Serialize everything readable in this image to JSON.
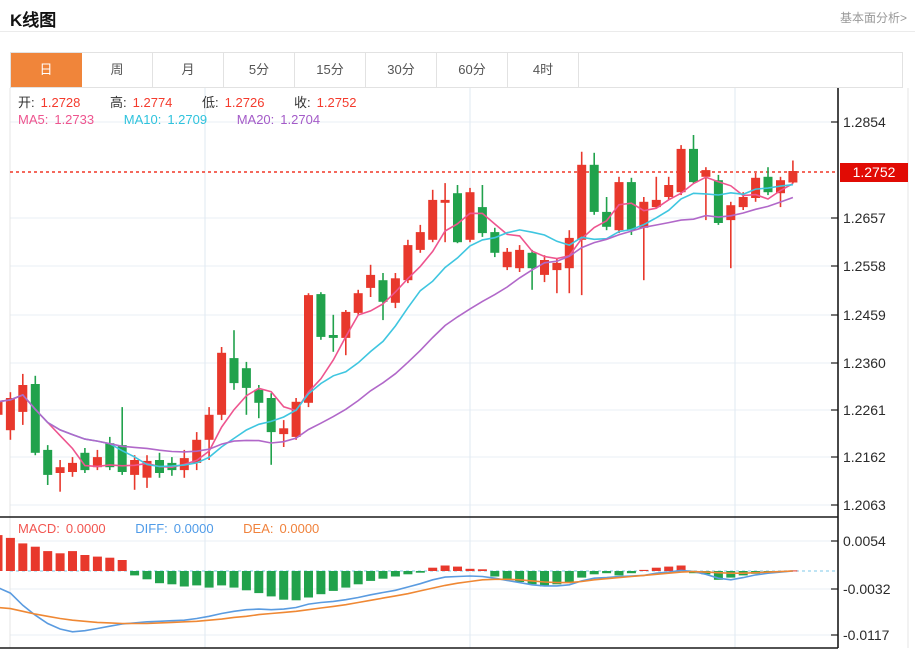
{
  "header": {
    "title": "K线图",
    "link": "基本面分析>"
  },
  "tabs": {
    "items": [
      "日",
      "周",
      "月",
      "5分",
      "15分",
      "30分",
      "60分",
      "4时"
    ],
    "active_index": 0
  },
  "ohlc": {
    "open_label": "开:",
    "open": "1.2728",
    "high_label": "高:",
    "high": "1.2774",
    "low_label": "低:",
    "low": "1.2726",
    "close_label": "收:",
    "close": "1.2752"
  },
  "ma": {
    "ma5_label": "MA5:",
    "ma5": "1.2733",
    "ma10_label": "MA10:",
    "ma10": "1.2709",
    "ma20_label": "MA20:",
    "ma20": "1.2704"
  },
  "macd_header": {
    "macd_label": "MACD:",
    "macd": "0.0000",
    "diff_label": "DIFF:",
    "diff": "0.0000",
    "dea_label": "DEA:",
    "dea": "0.0000"
  },
  "y_axis": {
    "main_ticks": [
      "1.2854",
      "1.2657",
      "1.2558",
      "1.2459",
      "1.2360",
      "1.2261",
      "1.2162",
      "1.2063"
    ],
    "current_price": "1.2752",
    "macd_ticks": [
      "0.0054",
      "-0.0032",
      "-0.0117"
    ]
  },
  "colors": {
    "up": "#e8382c",
    "down": "#21a24c",
    "accent_tab": "#f0853a",
    "price_line": "#f03626",
    "badge": "#e10b04",
    "ma5": "#ee558f",
    "ma10": "#3fc6e0",
    "ma20": "#b168c9",
    "diff": "#5a9be0",
    "dea": "#ef8834",
    "zero_dash": "#aadcf0",
    "grid": "#e9eff6",
    "vgrid": "#dfe9f2",
    "axis": "#1a1a1a"
  },
  "chart_data": {
    "type": "candlestick_with_macd",
    "title": "K线图 daily candles",
    "price_axis": {
      "ticks": [
        1.2854,
        1.2657,
        1.2558,
        1.2459,
        1.236,
        1.2261,
        1.2162,
        1.2063
      ],
      "current_price": 1.2752
    },
    "macd_axis": {
      "ticks": [
        0.0054,
        -0.0032,
        -0.0117
      ]
    },
    "legend": [
      "MA5",
      "MA10",
      "MA20",
      "MACD",
      "DIFF",
      "DEA"
    ],
    "candles_ohlc_format": [
      "open",
      "high",
      "low",
      "close"
    ],
    "candles": [
      [
        1.2245,
        1.2292,
        1.2203,
        1.2272
      ],
      [
        1.2213,
        1.2292,
        1.2193,
        1.228
      ],
      [
        1.2251,
        1.233,
        1.2224,
        1.2307
      ],
      [
        1.2309,
        1.2326,
        1.2161,
        1.2166
      ],
      [
        1.2172,
        1.2182,
        1.2099,
        1.212
      ],
      [
        1.2124,
        1.2151,
        1.2085,
        1.2136
      ],
      [
        1.2126,
        1.2157,
        1.2116,
        1.2145
      ],
      [
        1.2166,
        1.2176,
        1.2124,
        1.213
      ],
      [
        1.2136,
        1.2172,
        1.213,
        1.2157
      ],
      [
        1.2186,
        1.2199,
        1.213,
        1.2136
      ],
      [
        1.2182,
        1.2261,
        1.212,
        1.2126
      ],
      [
        1.212,
        1.2161,
        1.2089,
        1.2151
      ],
      [
        1.2114,
        1.2161,
        1.2093,
        1.2149
      ],
      [
        1.2151,
        1.2166,
        1.2114,
        1.2124
      ],
      [
        1.2145,
        1.2157,
        1.2118,
        1.213
      ],
      [
        1.213,
        1.2172,
        1.2114,
        1.2155
      ],
      [
        1.2145,
        1.2209,
        1.213,
        1.2193
      ],
      [
        1.2193,
        1.2261,
        1.2151,
        1.2245
      ],
      [
        1.2245,
        1.2386,
        1.2234,
        1.2374
      ],
      [
        1.2363,
        1.2421,
        1.2297,
        1.2311
      ],
      [
        1.2342,
        1.2355,
        1.2245,
        1.2301
      ],
      [
        1.2297,
        1.2307,
        1.2238,
        1.227
      ],
      [
        1.228,
        1.229,
        1.2141,
        1.2209
      ],
      [
        1.2205,
        1.2234,
        1.2178,
        1.2217
      ],
      [
        1.2199,
        1.228,
        1.2193,
        1.2272
      ],
      [
        1.227,
        1.2498,
        1.2261,
        1.2494
      ],
      [
        1.2496,
        1.25,
        1.2401,
        1.2407
      ],
      [
        1.2411,
        1.2453,
        1.2376,
        1.2405
      ],
      [
        1.2405,
        1.2463,
        1.2369,
        1.2459
      ],
      [
        1.2457,
        1.2505,
        1.2453,
        1.2498
      ],
      [
        1.2509,
        1.2557,
        1.249,
        1.2536
      ],
      [
        1.2525,
        1.254,
        1.2442,
        1.248
      ],
      [
        1.2478,
        1.254,
        1.2467,
        1.2529
      ],
      [
        1.2525,
        1.2609,
        1.2519,
        1.2598
      ],
      [
        1.2588,
        1.264,
        1.2582,
        1.2625
      ],
      [
        1.2609,
        1.2713,
        1.2604,
        1.2692
      ],
      [
        1.2686,
        1.2727,
        1.2604,
        1.2692
      ],
      [
        1.2706,
        1.2723,
        1.2602,
        1.2604
      ],
      [
        1.2609,
        1.2717,
        1.2604,
        1.2708
      ],
      [
        1.2677,
        1.2723,
        1.2615,
        1.2623
      ],
      [
        1.2625,
        1.2634,
        1.2573,
        1.2582
      ],
      [
        1.2552,
        1.2592,
        1.2546,
        1.2584
      ],
      [
        1.255,
        1.2598,
        1.2542,
        1.2588
      ],
      [
        1.2582,
        1.2588,
        1.2505,
        1.255
      ],
      [
        1.2536,
        1.2577,
        1.2521,
        1.2567
      ],
      [
        1.2546,
        1.2571,
        1.2498,
        1.2561
      ],
      [
        1.255,
        1.2629,
        1.2498,
        1.2613
      ],
      [
        1.2609,
        1.2792,
        1.2494,
        1.2765
      ],
      [
        1.2765,
        1.279,
        1.2661,
        1.2667
      ],
      [
        1.2667,
        1.2698,
        1.2629,
        1.2636
      ],
      [
        1.2629,
        1.274,
        1.2623,
        1.2729
      ],
      [
        1.2729,
        1.2738,
        1.2619,
        1.2629
      ],
      [
        1.2634,
        1.2698,
        1.2525,
        1.2688
      ],
      [
        1.2677,
        1.274,
        1.2675,
        1.2692
      ],
      [
        1.2698,
        1.274,
        1.2692,
        1.2723
      ],
      [
        1.2708,
        1.2806,
        1.2702,
        1.2798
      ],
      [
        1.2798,
        1.2827,
        1.2727,
        1.2729
      ],
      [
        1.274,
        1.276,
        1.265,
        1.2754
      ],
      [
        1.2733,
        1.2744,
        1.264,
        1.2644
      ],
      [
        1.265,
        1.2688,
        1.255,
        1.2681
      ],
      [
        1.2677,
        1.2708,
        1.2671,
        1.2698
      ],
      [
        1.2696,
        1.2748,
        1.2688,
        1.2738
      ],
      [
        1.274,
        1.276,
        1.2702,
        1.2708
      ],
      [
        1.2706,
        1.274,
        1.2677,
        1.2733
      ],
      [
        1.2728,
        1.2774,
        1.2726,
        1.2752
      ]
    ],
    "ma_periods": [
      5,
      10,
      20
    ],
    "macd": {
      "hist": [
        0.0065,
        0.006,
        0.005,
        0.0044,
        0.0036,
        0.0032,
        0.0036,
        0.0029,
        0.0026,
        0.0024,
        0.002,
        -0.0008,
        -0.0015,
        -0.0022,
        -0.0024,
        -0.0028,
        -0.0026,
        -0.003,
        -0.0026,
        -0.003,
        -0.0035,
        -0.004,
        -0.0046,
        -0.0052,
        -0.0053,
        -0.0048,
        -0.0042,
        -0.0036,
        -0.003,
        -0.0024,
        -0.0018,
        -0.0014,
        -0.001,
        -0.0006,
        -0.0003,
        0.0006,
        0.001,
        0.0008,
        0.0004,
        0.0003,
        -0.001,
        -0.0016,
        -0.002,
        -0.0024,
        -0.0028,
        -0.0024,
        -0.002,
        -0.0012,
        -0.0006,
        -0.0004,
        -0.0008,
        -0.0004,
        0.0002,
        0.0006,
        0.0008,
        0.001,
        -0.0004,
        -0.0006,
        -0.0016,
        -0.0012,
        -0.0008,
        -0.0005,
        -0.0004,
        -0.0002,
        0.0001
      ],
      "diff": [
        -0.003,
        -0.004,
        -0.0062,
        -0.008,
        -0.0095,
        -0.0105,
        -0.011,
        -0.0108,
        -0.0104,
        -0.01,
        -0.0096,
        -0.0094,
        -0.0092,
        -0.0091,
        -0.009,
        -0.0089,
        -0.0086,
        -0.0082,
        -0.0077,
        -0.0073,
        -0.007,
        -0.0069,
        -0.007,
        -0.0069,
        -0.0066,
        -0.006,
        -0.0057,
        -0.0055,
        -0.0052,
        -0.0048,
        -0.0043,
        -0.0039,
        -0.0035,
        -0.0029,
        -0.0023,
        -0.0016,
        -0.0011,
        -0.001,
        -0.0009,
        -0.001,
        -0.0013,
        -0.0017,
        -0.0021,
        -0.0025,
        -0.0027,
        -0.0027,
        -0.0025,
        -0.0018,
        -0.0013,
        -0.0012,
        -0.001,
        -0.0009,
        -0.0008,
        -0.0004,
        -0.0002,
        0.0001,
        -0.0001,
        -0.0006,
        -0.0013,
        -0.0016,
        -0.0012,
        -0.0007,
        -0.0004,
        -0.0002,
        0.0
      ],
      "dea": [
        -0.0066,
        -0.0068,
        -0.0073,
        -0.0078,
        -0.0082,
        -0.0086,
        -0.0089,
        -0.0091,
        -0.0093,
        -0.0094,
        -0.0095,
        -0.0095,
        -0.0095,
        -0.0094,
        -0.0093,
        -0.0092,
        -0.0091,
        -0.0089,
        -0.0087,
        -0.0084,
        -0.0082,
        -0.0079,
        -0.0077,
        -0.0075,
        -0.0073,
        -0.007,
        -0.0067,
        -0.0064,
        -0.0061,
        -0.0057,
        -0.0053,
        -0.0049,
        -0.0045,
        -0.0041,
        -0.0036,
        -0.0031,
        -0.0026,
        -0.0022,
        -0.0019,
        -0.0016,
        -0.0015,
        -0.0015,
        -0.0016,
        -0.0018,
        -0.002,
        -0.0021,
        -0.0021,
        -0.0019,
        -0.0016,
        -0.0014,
        -0.0012,
        -0.001,
        -0.0008,
        -0.0006,
        -0.0004,
        -0.0002,
        -0.0001,
        -0.0002,
        -0.0003,
        -0.0004,
        -0.0004,
        -0.0003,
        -0.0002,
        -0.0001,
        0.0
      ]
    }
  }
}
